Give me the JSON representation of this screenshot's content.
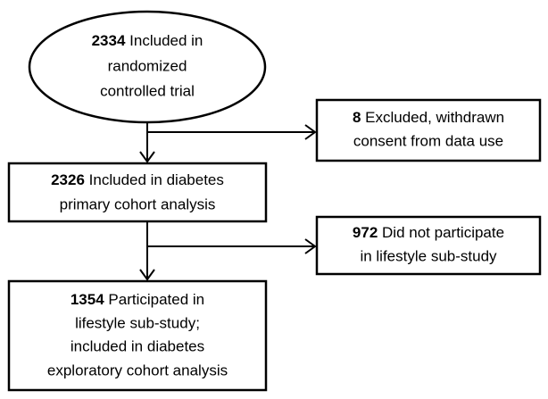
{
  "nodes": [
    {
      "count": "2334",
      "lines": [
        "Included in",
        "randomized",
        "controlled trial"
      ]
    },
    {
      "count": "8",
      "lines": [
        "Excluded, withdrawn",
        "consent from data use"
      ]
    },
    {
      "count": "2326",
      "lines": [
        "Included in diabetes",
        "primary cohort analysis"
      ]
    },
    {
      "count": "972",
      "lines": [
        "Did not participate",
        "in lifestyle sub-study"
      ]
    },
    {
      "count": "1354",
      "lines": [
        "Participated in",
        "lifestyle sub-study;",
        "included in diabetes",
        "exploratory cohort analysis"
      ]
    }
  ]
}
